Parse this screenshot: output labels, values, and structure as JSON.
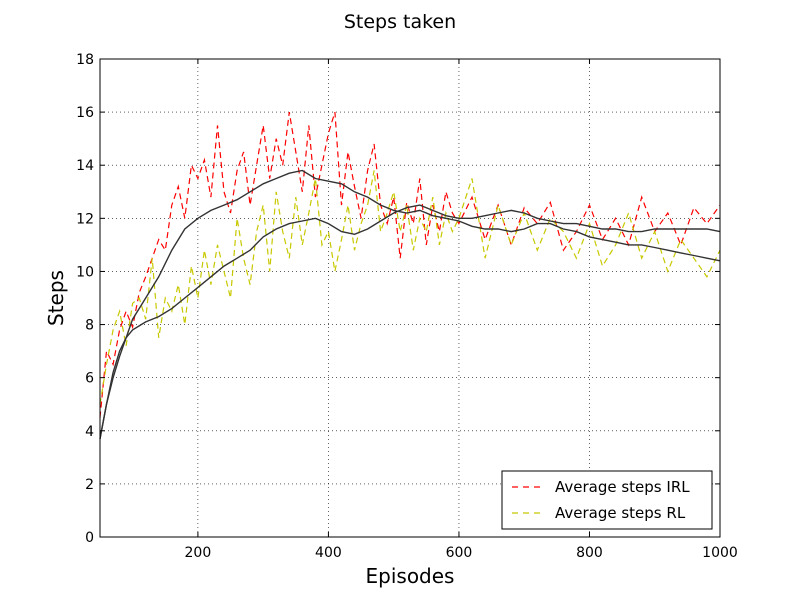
{
  "chart_data": {
    "type": "line",
    "title": "Steps taken",
    "xlabel": "Episodes",
    "ylabel": "Steps",
    "xlim": [
      50,
      1000
    ],
    "ylim": [
      0,
      18
    ],
    "xticks": [
      200,
      400,
      600,
      800,
      1000
    ],
    "yticks": [
      0,
      2,
      4,
      6,
      8,
      10,
      12,
      14,
      16,
      18
    ],
    "grid": true,
    "legend_position": "lower-right",
    "series": [
      {
        "name": "Average steps IRL",
        "color": "#ff0000",
        "style": "dashed",
        "x": [
          50,
          60,
          70,
          80,
          90,
          100,
          110,
          120,
          130,
          140,
          150,
          160,
          170,
          180,
          190,
          200,
          210,
          220,
          230,
          240,
          250,
          260,
          270,
          280,
          290,
          300,
          310,
          320,
          330,
          340,
          350,
          360,
          370,
          380,
          390,
          400,
          410,
          420,
          430,
          440,
          450,
          460,
          470,
          480,
          490,
          500,
          510,
          520,
          530,
          540,
          550,
          560,
          570,
          580,
          590,
          600,
          620,
          640,
          660,
          680,
          700,
          720,
          740,
          760,
          780,
          800,
          820,
          840,
          860,
          880,
          900,
          920,
          940,
          960,
          980,
          1000
        ],
        "y": [
          4.5,
          7.0,
          6.5,
          7.8,
          8.5,
          7.9,
          9.2,
          9.8,
          10.5,
          11.2,
          10.8,
          12.5,
          13.2,
          12.0,
          14.0,
          13.5,
          14.2,
          12.8,
          15.5,
          13.0,
          12.2,
          13.8,
          14.5,
          12.5,
          14.0,
          15.5,
          13.5,
          15.0,
          14.0,
          16.0,
          14.5,
          13.0,
          15.5,
          12.8,
          14.0,
          15.2,
          16.0,
          12.5,
          14.5,
          13.2,
          12.0,
          13.8,
          14.8,
          12.5,
          11.8,
          12.8,
          10.5,
          12.6,
          11.8,
          13.5,
          11.0,
          12.5,
          11.5,
          13.0,
          12.2,
          11.8,
          12.8,
          11.2,
          12.5,
          11.0,
          12.4,
          11.8,
          12.6,
          10.8,
          11.5,
          12.5,
          11.2,
          12.0,
          11.0,
          12.8,
          11.5,
          12.2,
          11.0,
          12.4,
          11.8,
          12.5
        ]
      },
      {
        "name": "Average steps RL",
        "color": "#c8c800",
        "style": "dashed",
        "x": [
          50,
          60,
          70,
          80,
          90,
          100,
          110,
          120,
          130,
          140,
          150,
          160,
          170,
          180,
          190,
          200,
          210,
          220,
          230,
          240,
          250,
          260,
          270,
          280,
          290,
          300,
          310,
          320,
          330,
          340,
          350,
          360,
          370,
          380,
          390,
          400,
          410,
          420,
          430,
          440,
          450,
          460,
          470,
          480,
          490,
          500,
          510,
          520,
          530,
          540,
          550,
          560,
          570,
          580,
          590,
          600,
          620,
          640,
          660,
          680,
          700,
          720,
          740,
          760,
          780,
          800,
          820,
          840,
          860,
          880,
          900,
          920,
          940,
          960,
          980,
          1000
        ],
        "y": [
          5.0,
          6.5,
          7.8,
          8.5,
          7.2,
          8.8,
          9.0,
          8.2,
          10.5,
          7.5,
          9.0,
          8.5,
          9.5,
          8.0,
          10.2,
          9.0,
          10.8,
          9.5,
          11.0,
          10.0,
          9.0,
          12.0,
          10.5,
          9.5,
          11.5,
          12.5,
          10.0,
          13.0,
          11.5,
          10.5,
          12.8,
          11.0,
          12.2,
          13.5,
          11.0,
          11.5,
          10.0,
          11.2,
          12.5,
          10.8,
          11.8,
          12.5,
          13.8,
          11.5,
          12.2,
          13.0,
          11.5,
          12.5,
          10.8,
          12.0,
          11.5,
          12.8,
          11.0,
          12.2,
          11.5,
          12.0,
          13.5,
          10.5,
          12.5,
          11.0,
          12.2,
          10.8,
          12.0,
          11.5,
          10.5,
          11.8,
          10.2,
          11.0,
          12.2,
          10.5,
          11.5,
          10.0,
          11.2,
          10.5,
          9.8,
          10.8
        ]
      },
      {
        "name": "",
        "color": "#333333",
        "style": "solid",
        "x": [
          50,
          60,
          70,
          80,
          90,
          100,
          120,
          140,
          160,
          180,
          200,
          220,
          240,
          260,
          280,
          300,
          320,
          340,
          360,
          380,
          400,
          420,
          440,
          460,
          480,
          500,
          520,
          540,
          560,
          580,
          600,
          620,
          640,
          660,
          680,
          700,
          720,
          740,
          760,
          780,
          800,
          820,
          840,
          860,
          880,
          900,
          920,
          940,
          960,
          980,
          1000
        ],
        "y": [
          3.7,
          5.0,
          6.0,
          6.8,
          7.5,
          8.2,
          9.0,
          9.8,
          10.8,
          11.6,
          12.0,
          12.3,
          12.5,
          12.7,
          13.0,
          13.3,
          13.5,
          13.7,
          13.8,
          13.5,
          13.4,
          13.3,
          13.0,
          12.8,
          12.5,
          12.3,
          12.2,
          12.3,
          12.1,
          12.0,
          11.9,
          11.7,
          11.6,
          11.6,
          11.5,
          11.6,
          11.8,
          11.8,
          11.6,
          11.5,
          11.3,
          11.2,
          11.1,
          11.0,
          11.0,
          10.9,
          10.8,
          10.7,
          10.6,
          10.5,
          10.4
        ]
      },
      {
        "name": "",
        "color": "#333333",
        "style": "solid",
        "x": [
          50,
          60,
          70,
          80,
          90,
          100,
          120,
          140,
          160,
          180,
          200,
          220,
          240,
          260,
          280,
          300,
          320,
          340,
          360,
          380,
          400,
          420,
          440,
          460,
          480,
          500,
          520,
          540,
          560,
          580,
          600,
          620,
          640,
          660,
          680,
          700,
          720,
          740,
          760,
          780,
          800,
          820,
          840,
          860,
          880,
          900,
          920,
          940,
          960,
          980,
          1000
        ],
        "y": [
          3.7,
          5.0,
          6.2,
          7.0,
          7.5,
          7.8,
          8.1,
          8.3,
          8.6,
          9.0,
          9.4,
          9.8,
          10.2,
          10.5,
          10.8,
          11.3,
          11.6,
          11.8,
          11.9,
          12.0,
          11.8,
          11.5,
          11.4,
          11.6,
          11.9,
          12.2,
          12.4,
          12.5,
          12.3,
          12.1,
          12.0,
          12.0,
          12.1,
          12.2,
          12.3,
          12.2,
          12.0,
          11.9,
          11.8,
          11.8,
          11.7,
          11.6,
          11.6,
          11.5,
          11.5,
          11.6,
          11.6,
          11.6,
          11.6,
          11.6,
          11.5
        ]
      }
    ]
  }
}
